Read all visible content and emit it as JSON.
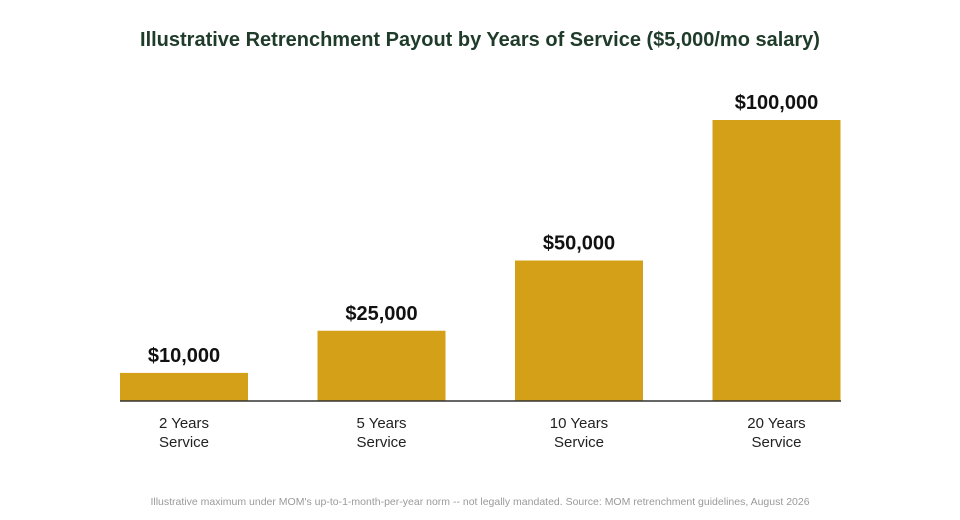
{
  "chart_data": {
    "type": "bar",
    "title": "Illustrative Retrenchment Payout by Years of Service ($5,000/mo salary)",
    "categories": [
      [
        "2 Years",
        "Service"
      ],
      [
        "5 Years",
        "Service"
      ],
      [
        "10 Years",
        "Service"
      ],
      [
        "20 Years",
        "Service"
      ]
    ],
    "values": [
      10000,
      25000,
      50000,
      100000
    ],
    "value_labels": [
      "$10,000",
      "$25,000",
      "$50,000",
      "$100,000"
    ],
    "xlabel": "",
    "ylabel": "",
    "ylim": [
      0,
      100000
    ],
    "grid": false,
    "legend": "none",
    "bar_color": "#D4A017",
    "note": "Illustrative maximum under MOM's up-to-1-month-per-year norm -- not legally mandated. Source: MOM retrenchment guidelines, August 2026"
  },
  "colors": {
    "title": "#1F3B2A",
    "axis": "#333333",
    "value_text": "#111111",
    "category_text": "#222222",
    "note_text": "#9A9A9A"
  }
}
